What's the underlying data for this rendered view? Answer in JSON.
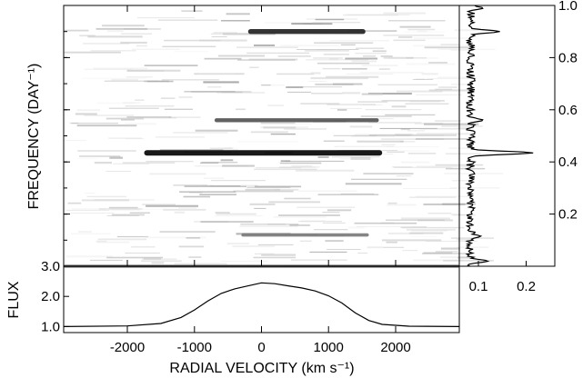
{
  "chart_data": [
    {
      "type": "heatmap",
      "panel": "main",
      "xlabel": "RADIAL VELOCITY (km s⁻¹)",
      "ylabel": "FREQUENCY (DAY⁻¹)",
      "xlim": [
        -2950,
        2950
      ],
      "ylim": [
        0.0,
        1.0
      ],
      "x_ticks": [
        -2000,
        -1000,
        0,
        1000,
        2000
      ],
      "y_ticks": [
        0.2,
        0.4,
        0.6,
        0.8,
        1.0
      ],
      "colormap": "grayscale (white = low power, black = high power)",
      "features": [
        {
          "frequency": 0.435,
          "v_start": -1750,
          "v_end": 1800,
          "intensity": 1.0
        },
        {
          "frequency": 0.9,
          "v_start": -200,
          "v_end": 1550,
          "intensity": 0.85
        },
        {
          "frequency": 0.56,
          "v_start": -700,
          "v_end": 1750,
          "intensity": 0.6
        },
        {
          "frequency": 0.12,
          "v_start": -300,
          "v_end": 1600,
          "intensity": 0.4
        },
        {
          "frequency": 0.0,
          "v_start": -2950,
          "v_end": 2950,
          "intensity": 0.7
        }
      ]
    },
    {
      "type": "line",
      "panel": "periodogram",
      "x": "power",
      "y": "frequency",
      "x_ticks": [
        0.1,
        0.2
      ],
      "y_ticks": [
        0.2,
        0.4,
        0.6,
        0.8,
        1.0
      ],
      "xlim": [
        0.06,
        0.26
      ],
      "ylim": [
        0.0,
        1.0
      ],
      "peaks": [
        {
          "frequency": 0.435,
          "power": 0.215
        },
        {
          "frequency": 0.9,
          "power": 0.145
        },
        {
          "frequency": 0.56,
          "power": 0.11
        },
        {
          "frequency": 0.115,
          "power": 0.105
        },
        {
          "frequency": 0.99,
          "power": 0.11
        },
        {
          "frequency": 0.02,
          "power": 0.12
        }
      ]
    },
    {
      "type": "line",
      "panel": "profile",
      "xlabel": "RADIAL VELOCITY (km s⁻¹)",
      "ylabel": "FLUX",
      "xlim": [
        -2950,
        2950
      ],
      "ylim": [
        0.8,
        3.0
      ],
      "x_ticks": [
        -2000,
        -1000,
        0,
        1000,
        2000
      ],
      "y_ticks": [
        1.0,
        2.0,
        3.0
      ],
      "y_tick_labels": [
        "1.0",
        "2.0",
        "3.0"
      ],
      "points": [
        [
          -2950,
          1.0
        ],
        [
          -2000,
          1.02
        ],
        [
          -1500,
          1.1
        ],
        [
          -1200,
          1.3
        ],
        [
          -1000,
          1.55
        ],
        [
          -800,
          1.85
        ],
        [
          -600,
          2.1
        ],
        [
          -400,
          2.25
        ],
        [
          -200,
          2.35
        ],
        [
          0,
          2.45
        ],
        [
          200,
          2.42
        ],
        [
          400,
          2.35
        ],
        [
          600,
          2.28
        ],
        [
          800,
          2.18
        ],
        [
          1000,
          2.02
        ],
        [
          1200,
          1.78
        ],
        [
          1400,
          1.45
        ],
        [
          1600,
          1.2
        ],
        [
          1800,
          1.07
        ],
        [
          2200,
          1.01
        ],
        [
          2950,
          1.0
        ]
      ]
    }
  ]
}
